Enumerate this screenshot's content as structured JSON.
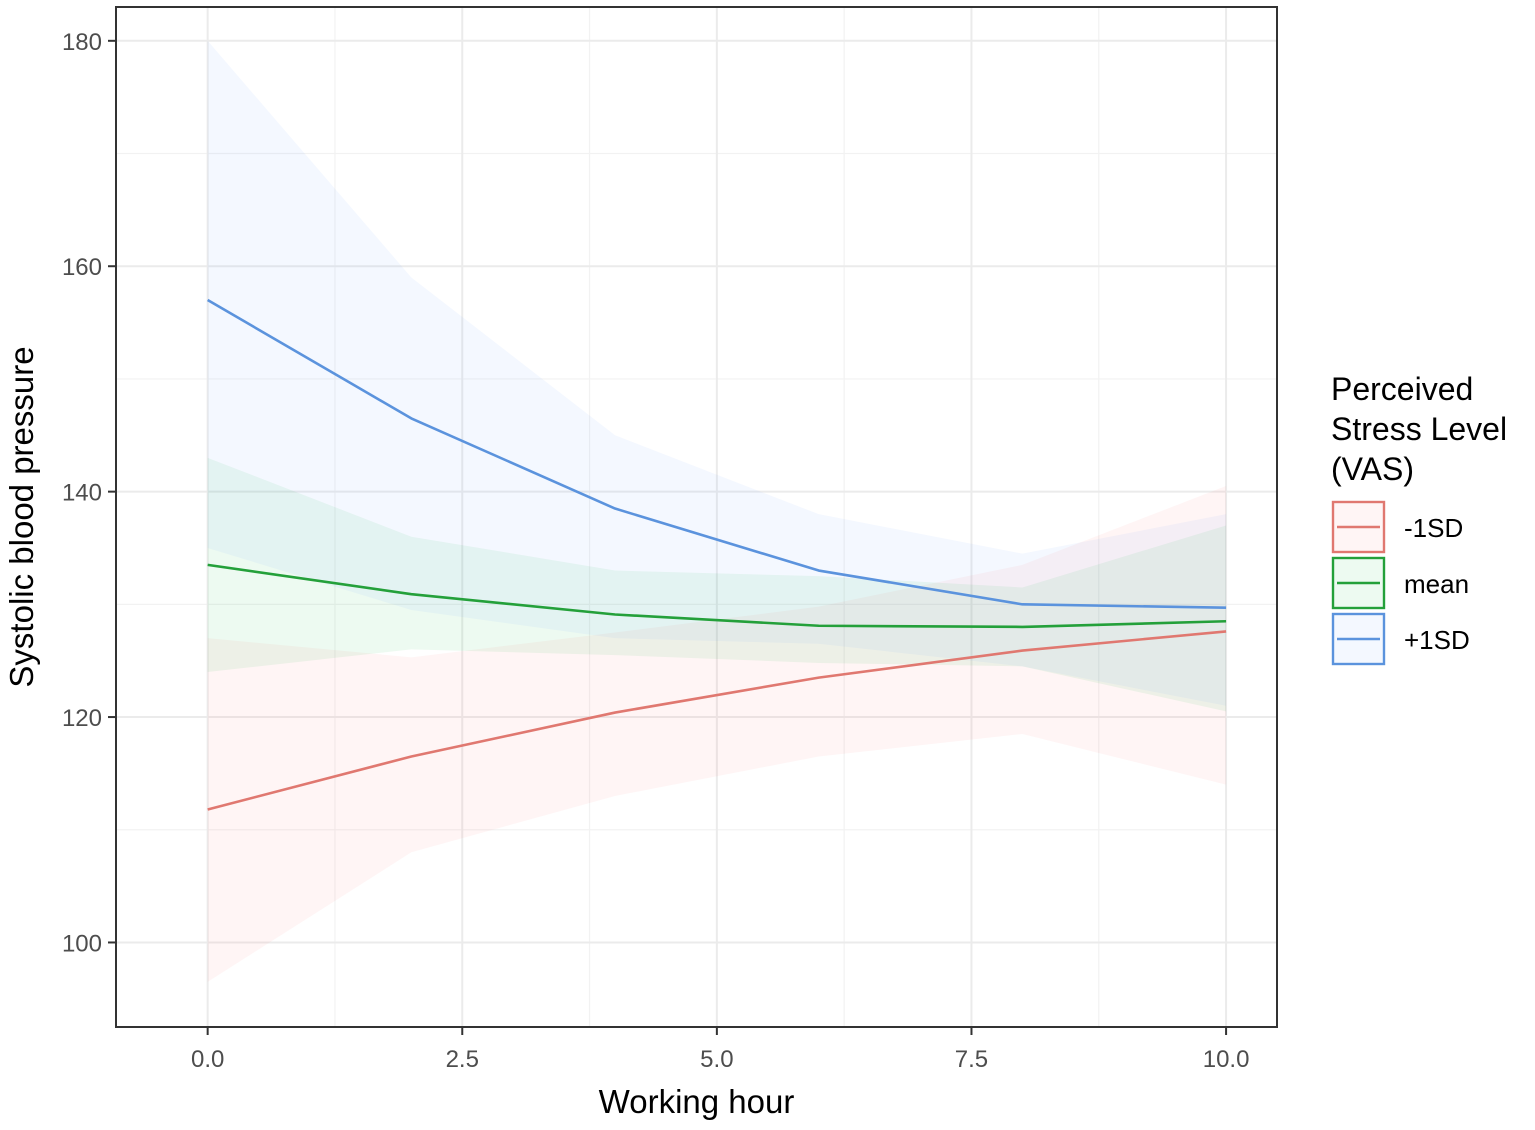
{
  "chart_data": {
    "type": "line",
    "xlabel": "Working hour",
    "ylabel": "Systolic blood pressure",
    "xlim": [
      -0.9,
      10.5
    ],
    "ylim": [
      92.5,
      183
    ],
    "x_ticks": [
      0,
      2.5,
      5,
      7.5,
      10
    ],
    "x_tick_labels": [
      "0.0",
      "2.5",
      "5.0",
      "7.5",
      "10.0"
    ],
    "y_ticks": [
      100,
      120,
      140,
      160,
      180
    ],
    "y_tick_labels": [
      "100",
      "120",
      "140",
      "160",
      "180"
    ],
    "grid": true,
    "legend": {
      "title": [
        "Perceived",
        "Stress Level",
        "(VAS)"
      ],
      "position": "right"
    },
    "x": [
      0,
      2,
      4,
      6,
      8,
      10
    ],
    "series": [
      {
        "name": "-1SD",
        "color": "#E07870",
        "fill": "#F8766D",
        "values": [
          111.8,
          116.5,
          120.4,
          123.5,
          125.9,
          127.6
        ],
        "lower": [
          96.5,
          108,
          113,
          116.5,
          118.5,
          114
        ],
        "upper": [
          127,
          125.3,
          127.5,
          129.8,
          133.5,
          140.5
        ]
      },
      {
        "name": "mean",
        "color": "#24A03A",
        "fill": "#00BA38",
        "values": [
          133.5,
          130.9,
          129.1,
          128.1,
          128,
          128.5
        ],
        "lower": [
          124,
          126,
          125.5,
          124.8,
          124.5,
          120.5
        ],
        "upper": [
          143,
          136,
          133,
          132.5,
          131.5,
          137
        ]
      },
      {
        "name": "+1SD",
        "color": "#5B93DD",
        "fill": "#619CFF",
        "values": [
          157,
          146.5,
          138.5,
          133,
          130,
          129.7
        ],
        "lower": [
          135,
          129.5,
          127,
          126.5,
          124.5,
          121
        ],
        "upper": [
          180,
          159,
          145,
          138,
          134.5,
          138
        ]
      }
    ]
  }
}
